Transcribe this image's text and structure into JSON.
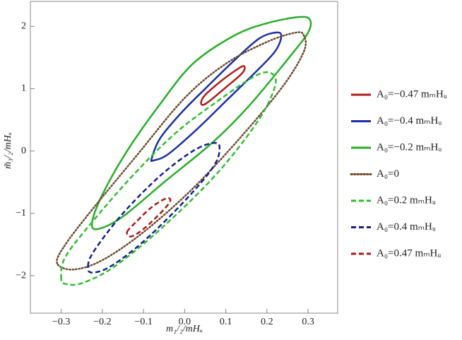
{
  "chart_data": {
    "type": "contour",
    "xlabel": "m₁/₂/mHᵤ",
    "ylabel": "m̃₃/₂/mHᵤ",
    "xlim": [
      -0.375,
      0.372
    ],
    "ylim": [
      -2.6,
      2.4
    ],
    "xticks": [
      {
        "value": -0.3,
        "label": "−0.3"
      },
      {
        "value": -0.2,
        "label": "−0.2"
      },
      {
        "value": -0.1,
        "label": "−0.1"
      },
      {
        "value": 0,
        "label": "0.0"
      },
      0.1,
      0.2,
      0.3
    ],
    "yticks": [
      {
        "value": -2,
        "label": "−2"
      },
      {
        "value": -1,
        "label": "−1"
      },
      0,
      1,
      2
    ],
    "series": [
      {
        "name": "A₀=−0.47 mₘHᵤ",
        "color": "#b01c1c",
        "dash": "solid",
        "x": [
          0.04,
          0.05,
          0.09,
          0.13,
          0.145,
          0.14,
          0.1,
          0.06,
          0.045
        ],
        "y": [
          0.78,
          0.9,
          1.13,
          1.32,
          1.36,
          1.25,
          1.02,
          0.8,
          0.74
        ]
      },
      {
        "name": "A₀=−0.4 mₘHᵤ",
        "color": "#1a2fa8",
        "dash": "solid",
        "x": [
          -0.08,
          -0.06,
          -0.01,
          0.05,
          0.12,
          0.18,
          0.22,
          0.235,
          0.22,
          0.17,
          0.1,
          0.03,
          -0.04,
          -0.075
        ],
        "y": [
          -0.12,
          0.2,
          0.6,
          1.0,
          1.45,
          1.8,
          1.9,
          1.85,
          1.6,
          1.25,
          0.8,
          0.35,
          -0.05,
          -0.15
        ]
      },
      {
        "name": "A₀=−0.2 mₘHᵤ",
        "color": "#27ae27",
        "dash": "solid",
        "x": [
          -0.225,
          -0.2,
          -0.14,
          -0.06,
          0.02,
          0.12,
          0.2,
          0.28,
          0.305,
          0.3,
          0.26,
          0.16,
          0.07,
          -0.05,
          -0.15,
          -0.21
        ],
        "y": [
          -1.15,
          -0.7,
          0.0,
          0.75,
          1.4,
          1.85,
          2.05,
          2.15,
          2.1,
          1.9,
          1.55,
          0.75,
          0.15,
          -0.5,
          -1.05,
          -1.25
        ]
      },
      {
        "name": "A₀=0",
        "color": "#6b4a2e",
        "dash": "dotted",
        "x": [
          -0.31,
          -0.29,
          -0.22,
          -0.12,
          0.0,
          0.1,
          0.2,
          0.27,
          0.29,
          0.29,
          0.24,
          0.14,
          0.02,
          -0.1,
          -0.2,
          -0.27
        ],
        "y": [
          -1.8,
          -1.5,
          -0.9,
          -0.1,
          0.85,
          1.4,
          1.75,
          1.9,
          1.85,
          1.6,
          1.05,
          0.25,
          -0.6,
          -1.3,
          -1.75,
          -1.9
        ]
      },
      {
        "name": "A₀=0.2 mₘHᵤ",
        "color": "#2fbf2f",
        "dash": "dashed",
        "x": [
          -0.3,
          -0.29,
          -0.22,
          -0.12,
          -0.02,
          0.08,
          0.17,
          0.21,
          0.22,
          0.18,
          0.08,
          -0.05,
          -0.17,
          -0.25,
          -0.29
        ],
        "y": [
          -2.05,
          -1.7,
          -1.1,
          -0.35,
          0.3,
          0.8,
          1.2,
          1.25,
          1.05,
          0.5,
          -0.35,
          -1.2,
          -1.85,
          -2.12,
          -2.13
        ]
      },
      {
        "name": "A₀=0.4 mₘHᵤ",
        "color": "#141e96",
        "dash": "dashed",
        "x": [
          -0.235,
          -0.22,
          -0.15,
          -0.06,
          0.02,
          0.07,
          0.085,
          0.07,
          0.0,
          -0.1,
          -0.18,
          -0.225
        ],
        "y": [
          -1.85,
          -1.6,
          -1.0,
          -0.4,
          0.0,
          0.13,
          0.05,
          -0.25,
          -0.8,
          -1.45,
          -1.85,
          -1.95
        ]
      },
      {
        "name": "A₀=0.47 mₘHᵤ",
        "color": "#a81a1a",
        "dash": "dashed",
        "x": [
          -0.14,
          -0.12,
          -0.08,
          -0.045,
          -0.035,
          -0.055,
          -0.1,
          -0.13
        ],
        "y": [
          -1.3,
          -1.15,
          -0.9,
          -0.76,
          -0.8,
          -0.97,
          -1.25,
          -1.37
        ]
      }
    ]
  }
}
